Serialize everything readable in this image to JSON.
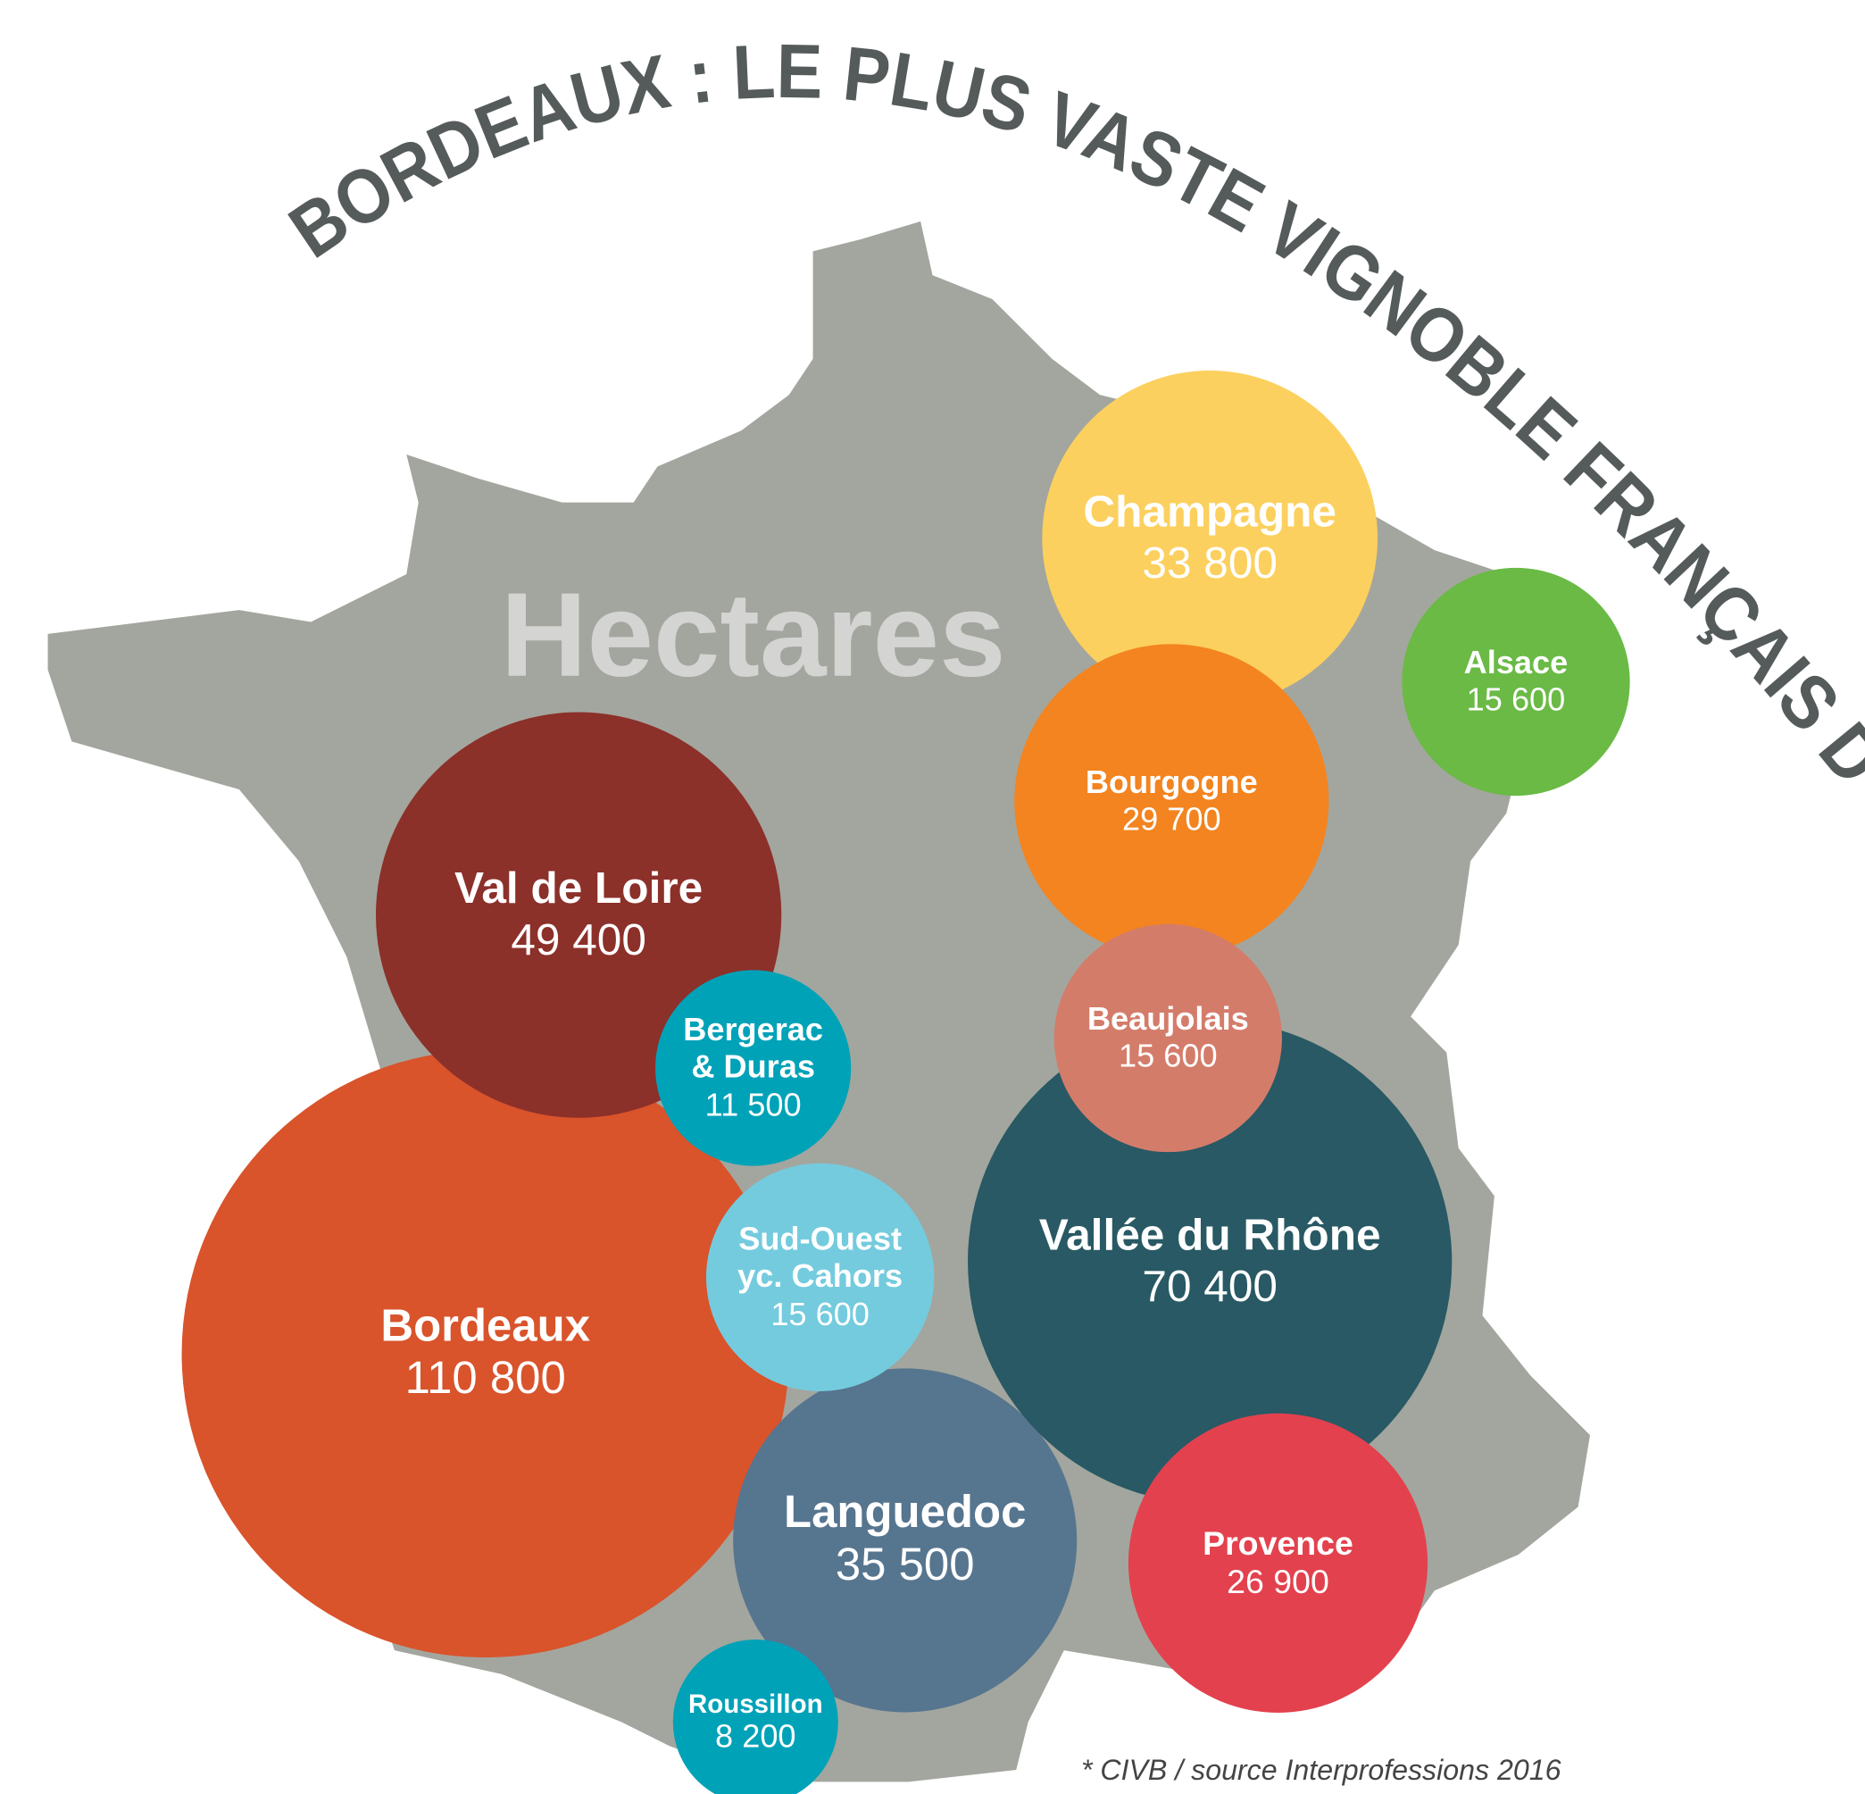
{
  "chart_data": {
    "type": "bubble",
    "title": "BORDEAUX : LE PLUS VASTE VIGNOBLE FRANÇAIS D'AOC *",
    "subtitle": "Hectares",
    "annotation": "* CIVB / source Interprofessions 2016",
    "categories": [
      "Bordeaux",
      "Val de Loire",
      "Languedoc",
      "Sud-Ouest yc. Cahors",
      "Bergerac & Duras",
      "Roussillon",
      "Vallée du Rhône",
      "Provence",
      "Champagne",
      "Bourgogne",
      "Beaujolais",
      "Alsace"
    ],
    "values": [
      110800,
      49400,
      35500,
      15600,
      11500,
      8200,
      70400,
      26900,
      33800,
      29700,
      15600,
      15600
    ],
    "value_labels": [
      "110 800",
      "49 400",
      "35 500",
      "15 600",
      "11 500",
      "8 200",
      "70 400",
      "26 900",
      "33 800",
      "29 700",
      "15 600",
      "15 600"
    ],
    "colors": [
      "#d9532b",
      "#8c302a",
      "#56758f",
      "#74cbde",
      "#00a2b8",
      "#00a2b8",
      "#285964",
      "#e3414e",
      "#fcd05e",
      "#f38420",
      "#d47c6a",
      "#6aba45"
    ]
  }
}
